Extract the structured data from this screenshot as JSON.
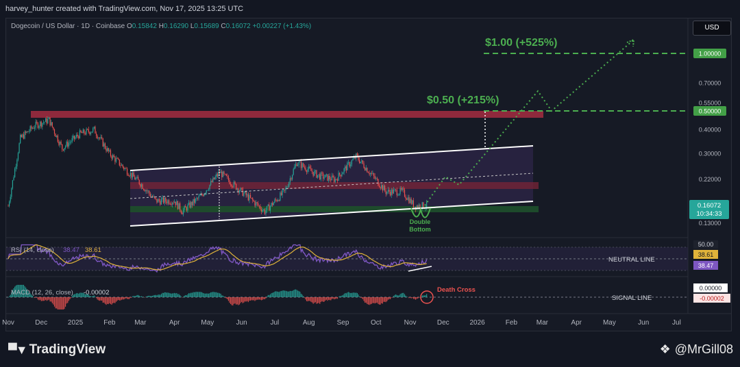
{
  "credit": "harvey_hunter created with TradingView.com, Nov 17, 2025 13:25 UTC",
  "symbol": {
    "name": "Dogecoin / US Dollar · 1D · Coinbase",
    "open_label": "O",
    "open": "0.15842",
    "high_label": "H",
    "high": "0.16290",
    "low_label": "L",
    "low": "0.15689",
    "close_label": "C",
    "close": "0.16072",
    "change": "+0.00227 (+1.43%)"
  },
  "currency_button": "USD",
  "price_axis": {
    "ticks": [
      "1.00000",
      "0.70000",
      "0.55000",
      "0.50000",
      "0.40000",
      "0.30000",
      "0.22000",
      "0.16072",
      "0.13000"
    ],
    "current_price": "0.16072",
    "countdown": "10:34:33"
  },
  "annotations": {
    "target_1": "$1.00 (+525%)",
    "target_2": "$0.50 (+215%)",
    "pattern": "Double\nBottom",
    "pattern_line1": "Double",
    "pattern_line2": "Bottom",
    "neutral_line": "NEUTRAL LINE",
    "signal_line": "SIGNAL LINE",
    "death_cross": "Death Cross"
  },
  "rsi": {
    "label": "RSI (14, close)",
    "value_1": "38.47",
    "value_2": "38.61",
    "axis": [
      "50.00",
      "38.61",
      "38.47"
    ]
  },
  "macd": {
    "label": "MACD (12, 26, close)",
    "value": "-0.00002",
    "axis": [
      "0.00000",
      "-0.00002"
    ]
  },
  "time_axis": [
    "Nov",
    "Dec",
    "2025",
    "Feb",
    "Mar",
    "Apr",
    "May",
    "Jun",
    "Jul",
    "Aug",
    "Sep",
    "Oct",
    "Nov",
    "Dec",
    "2026",
    "Feb",
    "Mar",
    "Apr",
    "May",
    "Jun",
    "Jul"
  ],
  "footer": {
    "brand": "TradingView",
    "handle": "@MrGill08"
  },
  "colors": {
    "bull": "#26a69a",
    "bear": "#ef5350",
    "rsi": "#7e57c2",
    "rsi_ma": "#e0b33a",
    "target": "#4caf50",
    "resistance_zone": "#9c2b3f",
    "support_zone": "#1e4d2b",
    "channel_fill": "#2a2444"
  },
  "chart_data": {
    "type": "candlestick",
    "title": "Dogecoin / US Dollar · 1D · Coinbase",
    "y_scale": "log",
    "ylim": [
      0.13,
      1.0
    ],
    "x_range": [
      "2024-11",
      "2026-07"
    ],
    "close_path": [
      [
        "2024-11-01",
        0.16
      ],
      [
        "2024-11-12",
        0.36
      ],
      [
        "2024-11-25",
        0.42
      ],
      [
        "2024-12-08",
        0.45
      ],
      [
        "2024-12-20",
        0.32
      ],
      [
        "2025-01-05",
        0.38
      ],
      [
        "2025-01-18",
        0.4
      ],
      [
        "2025-02-01",
        0.3
      ],
      [
        "2025-02-15",
        0.25
      ],
      [
        "2025-03-01",
        0.21
      ],
      [
        "2025-03-15",
        0.17
      ],
      [
        "2025-04-01",
        0.17
      ],
      [
        "2025-04-08",
        0.15
      ],
      [
        "2025-04-25",
        0.18
      ],
      [
        "2025-05-12",
        0.24
      ],
      [
        "2025-06-01",
        0.19
      ],
      [
        "2025-06-22",
        0.15
      ],
      [
        "2025-07-10",
        0.19
      ],
      [
        "2025-07-21",
        0.27
      ],
      [
        "2025-08-10",
        0.23
      ],
      [
        "2025-08-25",
        0.22
      ],
      [
        "2025-09-13",
        0.29
      ],
      [
        "2025-09-28",
        0.23
      ],
      [
        "2025-10-10",
        0.19
      ],
      [
        "2025-10-25",
        0.19
      ],
      [
        "2025-11-05",
        0.16
      ],
      [
        "2025-11-17",
        0.16072
      ]
    ],
    "price_targets": [
      0.5,
      1.0
    ],
    "rsi": {
      "period": 14,
      "value": 38.47,
      "ma": 38.61,
      "neutral": 50
    },
    "macd": {
      "fast": 12,
      "slow": 26,
      "value": -2e-05,
      "signal": 0.0
    }
  }
}
